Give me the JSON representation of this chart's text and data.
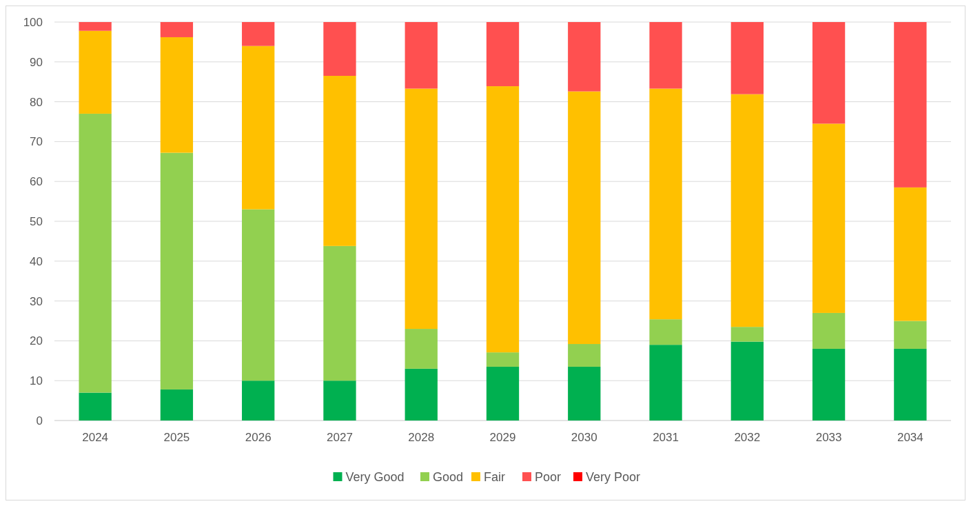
{
  "chart_data": {
    "type": "bar",
    "stacked": true,
    "categories": [
      "2024",
      "2025",
      "2026",
      "2027",
      "2028",
      "2029",
      "2030",
      "2031",
      "2032",
      "2033",
      "2034"
    ],
    "series": [
      {
        "name": "Very Good",
        "color": "#00b050",
        "values": [
          7,
          7.8,
          10,
          10,
          13,
          13.5,
          13.5,
          19,
          19.8,
          18,
          18
        ]
      },
      {
        "name": "Good",
        "color": "#92d050",
        "values": [
          70,
          59.4,
          43,
          33.8,
          10,
          3.6,
          5.7,
          6.4,
          3.7,
          9,
          7
        ]
      },
      {
        "name": "Fair",
        "color": "#ffc000",
        "values": [
          20.8,
          29,
          41,
          42.7,
          60.3,
          66.8,
          63.4,
          57.9,
          58.4,
          47.5,
          33.5
        ]
      },
      {
        "name": "Poor",
        "color": "#ff5050",
        "values": [
          2.2,
          3.8,
          6,
          13.5,
          16.7,
          16.1,
          17.4,
          16.7,
          18.1,
          25.5,
          41.5
        ]
      },
      {
        "name": "Very Poor",
        "color": "#ff0000",
        "values": [
          0,
          0,
          0,
          0,
          0,
          0,
          0,
          0,
          0,
          0,
          0
        ]
      }
    ],
    "ylim": [
      0,
      100
    ],
    "yticks": [
      0,
      10,
      20,
      30,
      40,
      50,
      60,
      70,
      80,
      90,
      100
    ],
    "grid": "y",
    "legend": "bottom"
  }
}
